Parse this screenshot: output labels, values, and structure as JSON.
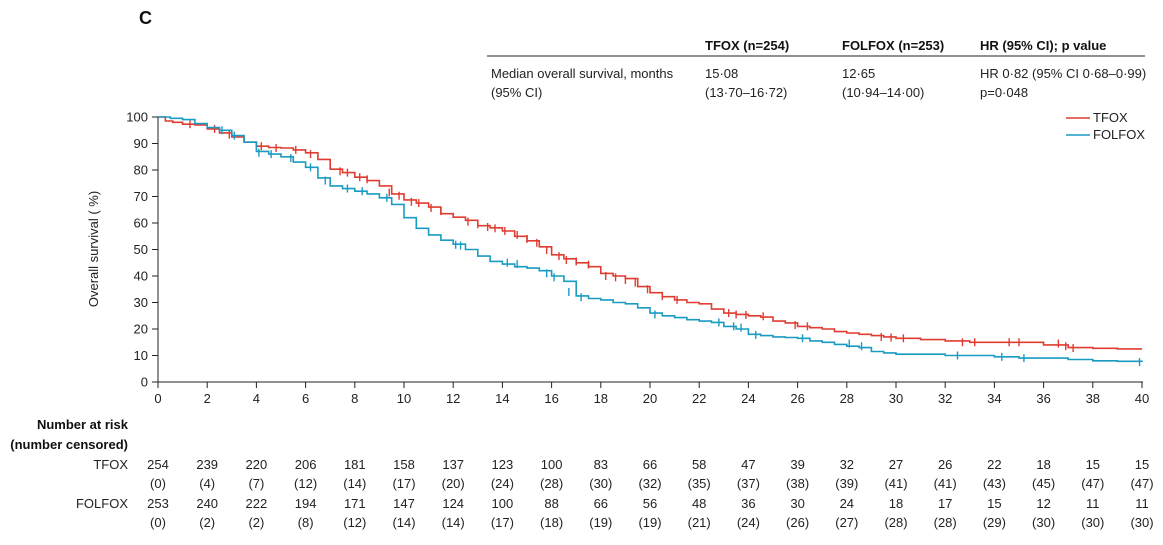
{
  "panel_label": "C",
  "summary_table": {
    "headers": [
      "TFOX (n=254)",
      "FOLFOX (n=253)",
      "HR (95% CI); p value"
    ],
    "row_label_line1": "Median overall survival,  months",
    "row_label_line2": "(95% CI)",
    "tfox_median": "15·08",
    "tfox_ci": "(13·70–16·72)",
    "folfox_median": "12·65",
    "folfox_ci": "(10·94–14·00)",
    "hr": "HR 0·82 (95% CI 0·68–0·99)",
    "p": "p=0·048"
  },
  "risk_table": {
    "title_line1": "Number at risk",
    "title_line2": "(number censored)",
    "tfox_label": "TFOX",
    "folfox_label": "FOLFOX",
    "tfox_risk": [
      "254",
      "239",
      "220",
      "206",
      "181",
      "158",
      "137",
      "123",
      "100",
      "83",
      "66",
      "58",
      "47",
      "39",
      "32",
      "27",
      "26",
      "22",
      "18",
      "15",
      "15"
    ],
    "tfox_censored": [
      "(0)",
      "(4)",
      "(7)",
      "(12)",
      "(14)",
      "(17)",
      "(20)",
      "(24)",
      "(28)",
      "(30)",
      "(32)",
      "(35)",
      "(37)",
      "(38)",
      "(39)",
      "(41)",
      "(41)",
      "(43)",
      "(45)",
      "(47)",
      "(47)"
    ],
    "folfox_risk": [
      "253",
      "240",
      "222",
      "194",
      "171",
      "147",
      "124",
      "100",
      "88",
      "66",
      "56",
      "48",
      "36",
      "30",
      "24",
      "18",
      "17",
      "15",
      "12",
      "11",
      "11"
    ],
    "folfox_censored": [
      "(0)",
      "(2)",
      "(2)",
      "(8)",
      "(12)",
      "(14)",
      "(14)",
      "(17)",
      "(18)",
      "(19)",
      "(19)",
      "(21)",
      "(24)",
      "(26)",
      "(27)",
      "(28)",
      "(28)",
      "(29)",
      "(30)",
      "(30)",
      "(30)"
    ]
  },
  "chart_data": {
    "type": "line",
    "title": "",
    "xlabel": "",
    "ylabel": "Overall survival ( %)",
    "xlim": [
      0,
      40
    ],
    "ylim": [
      0,
      100
    ],
    "xticks": [
      0,
      2,
      4,
      6,
      8,
      10,
      12,
      14,
      16,
      18,
      20,
      22,
      24,
      26,
      28,
      30,
      32,
      34,
      36,
      38,
      40
    ],
    "yticks": [
      0,
      10,
      20,
      30,
      40,
      50,
      60,
      70,
      80,
      90,
      100
    ],
    "legend": [
      "TFOX",
      "FOLFOX"
    ],
    "legend_position": "top-right",
    "series": [
      {
        "name": "TFOX",
        "color": "#e03c31",
        "x": [
          0,
          0.3,
          0.6,
          1,
          1.5,
          2,
          2.5,
          3,
          3.5,
          4,
          4.5,
          5,
          5.5,
          6,
          6.5,
          7,
          7.5,
          8,
          8.5,
          9,
          9.5,
          10,
          10.5,
          11,
          11.5,
          12,
          12.5,
          13,
          13.5,
          14,
          14.5,
          15,
          15.5,
          16,
          16.5,
          17,
          17.5,
          18,
          18.5,
          19,
          19.5,
          20,
          20.5,
          21,
          21.5,
          22,
          22.5,
          23,
          23.5,
          24,
          24.5,
          25,
          25.5,
          26,
          26.5,
          27,
          27.5,
          28,
          28.5,
          29,
          29.5,
          30,
          31,
          32,
          33,
          34,
          35,
          36,
          37,
          38,
          39,
          40
        ],
        "y": [
          100,
          98.5,
          98,
          97.3,
          97,
          95.5,
          94,
          92.5,
          90.5,
          89,
          88.5,
          88.3,
          87.6,
          86.5,
          84,
          80.3,
          79,
          77.3,
          76,
          74,
          71,
          68.7,
          67.5,
          66,
          63.5,
          62.2,
          61,
          59,
          58.2,
          57,
          55,
          53.3,
          51,
          48,
          46.5,
          45,
          43.5,
          41,
          40,
          39,
          36,
          33.7,
          32.2,
          31,
          30,
          29.5,
          27.5,
          26,
          25.5,
          25,
          24.5,
          23,
          22.3,
          21,
          20.5,
          20,
          19,
          18.5,
          18,
          17.5,
          17,
          16.5,
          16,
          15.5,
          15,
          15,
          15,
          14,
          13,
          12.7,
          12.5,
          12.5
        ],
        "censor_x": [
          1.3,
          2.3,
          2.9,
          4.2,
          4.8,
          5.6,
          6.2,
          7.4,
          7.7,
          8.2,
          8.5,
          9.4,
          9.8,
          10.3,
          10.6,
          11.1,
          11.5,
          12.6,
          13,
          13.4,
          13.7,
          14.1,
          14.6,
          15,
          15.4,
          15.8,
          16.3,
          16.6,
          17,
          17.5,
          18.2,
          18.6,
          19,
          19.4,
          19.9,
          20.5,
          21.1,
          23.2,
          23.5,
          23.9,
          24.6,
          25.9,
          26.4,
          29.4,
          29.8,
          30.3,
          32.7,
          33.2,
          34.6,
          35,
          36.6,
          36.9,
          37.2
        ],
        "censor_y": [
          97.3,
          95.5,
          93.3,
          89,
          88.3,
          87.6,
          86,
          79.5,
          79,
          77.3,
          76.5,
          71.5,
          70.3,
          68,
          67.5,
          65.7,
          64.5,
          60.5,
          59.5,
          58.5,
          58,
          57,
          55.5,
          54,
          52.5,
          49.8,
          47.5,
          46,
          45.5,
          44.3,
          40,
          39.5,
          38.5,
          37.5,
          35,
          32.5,
          31,
          26,
          25.5,
          25.3,
          24.8,
          21.5,
          21,
          17,
          16.8,
          16.5,
          15,
          15,
          15,
          15,
          14.5,
          13.5,
          12.8
        ]
      },
      {
        "name": "FOLFOX",
        "color": "#1a9bc2",
        "x": [
          0,
          0.5,
          1,
          1.5,
          2,
          2.5,
          3,
          3.5,
          4,
          4.5,
          5,
          5.5,
          6,
          6.5,
          7,
          7.5,
          8,
          8.5,
          9,
          9.5,
          10,
          10.5,
          11,
          11.5,
          12,
          12.5,
          13,
          13.5,
          14,
          14.5,
          15,
          15.5,
          16,
          16.5,
          17,
          17.5,
          18,
          18.5,
          19,
          19.5,
          20,
          20.5,
          21,
          21.5,
          22,
          22.5,
          23,
          23.5,
          24,
          24.5,
          25,
          25.5,
          26,
          26.5,
          27,
          27.5,
          28,
          28.5,
          29,
          29.5,
          30,
          31,
          32,
          33,
          34,
          35,
          36,
          37,
          38,
          39,
          40
        ],
        "y": [
          100,
          99.5,
          99,
          97.5,
          96,
          95,
          93,
          90.5,
          87,
          86,
          85,
          83,
          81,
          77,
          74,
          73,
          72,
          71,
          69.5,
          67,
          62,
          58,
          55.5,
          53.5,
          52,
          50,
          47.5,
          45.5,
          44.5,
          43.5,
          43,
          42,
          40,
          38,
          32.5,
          31.5,
          31,
          30,
          29.5,
          28,
          26,
          25,
          24.3,
          23.5,
          23,
          22.5,
          21,
          20,
          18,
          17.5,
          17,
          16.8,
          16.5,
          15.5,
          15,
          14.2,
          13.5,
          13,
          11.5,
          11,
          10.5,
          10.5,
          10,
          10,
          9.5,
          9,
          9,
          8.5,
          8,
          7.8,
          7.5
        ],
        "censor_x": [
          2.6,
          3.1,
          4.1,
          4.6,
          5.4,
          6.2,
          6.8,
          7.7,
          8.3,
          9.3,
          12.1,
          12.3,
          14.2,
          14.6,
          15.8,
          16.1,
          16.7,
          17.2,
          20.2,
          22.8,
          23.4,
          23.7,
          24.3,
          26.2,
          28.1,
          28.6,
          32.5,
          34.3,
          35.2,
          39.9
        ],
        "censor_y": [
          95,
          93,
          86.5,
          86,
          84.5,
          81,
          76,
          73,
          72,
          69.5,
          51.8,
          51.5,
          45,
          44.5,
          41,
          39.5,
          34,
          32,
          25.5,
          22.5,
          21,
          20.5,
          17.8,
          16.5,
          14.5,
          13.5,
          10,
          9.5,
          9,
          7.5
        ]
      }
    ]
  }
}
